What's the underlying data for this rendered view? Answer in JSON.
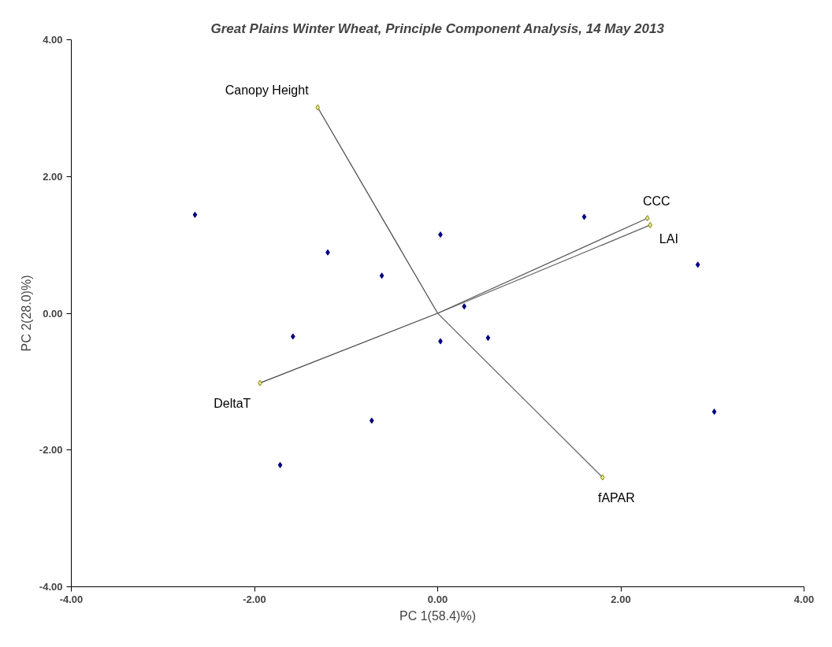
{
  "chart_data": {
    "type": "scatter",
    "title": "Great Plains Winter Wheat, Principle Component Analysis, 14 May 2013",
    "xlabel": "PC 1(58.4)%)",
    "ylabel": "PC 2(28.0)%)",
    "xlim": [
      -4,
      4
    ],
    "ylim": [
      -4,
      4
    ],
    "xticks": [
      {
        "value": -4,
        "label": "-4.00"
      },
      {
        "value": -2,
        "label": "-2.00"
      },
      {
        "value": 0,
        "label": "0.00"
      },
      {
        "value": 2,
        "label": "2.00"
      },
      {
        "value": 4,
        "label": "4.00"
      }
    ],
    "yticks": [
      {
        "value": -4,
        "label": "-4.00"
      },
      {
        "value": -2,
        "label": "-2.00"
      },
      {
        "value": 0,
        "label": "0.00"
      },
      {
        "value": 2,
        "label": "2.00"
      },
      {
        "value": 4,
        "label": "4.00"
      }
    ],
    "grid": false,
    "series": [
      {
        "color": "#000080",
        "marker": "diamond",
        "x": [
          -2.65,
          1.6,
          0.03,
          -1.2,
          -0.61,
          2.84,
          0.29,
          -1.58,
          0.03,
          0.55,
          3.02,
          -0.72,
          -1.72
        ],
        "values": [
          1.44,
          1.41,
          1.15,
          0.89,
          0.55,
          0.71,
          0.1,
          -0.34,
          -0.41,
          -0.36,
          -1.44,
          -1.57,
          -2.22
        ]
      },
      {
        "type": "line",
        "name": "Canopy Height",
        "color": "#505050",
        "marker": "diamond",
        "x": [
          0,
          -1.31
        ],
        "values": [
          0,
          3.01
        ]
      },
      {
        "type": "line",
        "name": "CCC",
        "color": "#5a5a5a",
        "marker": "diamond",
        "x": [
          0,
          2.29
        ],
        "values": [
          0,
          1.39
        ]
      },
      {
        "type": "line",
        "name": "LAI",
        "color": "#646464",
        "marker": "diamond",
        "x": [
          0,
          2.32
        ],
        "values": [
          0,
          1.29
        ]
      },
      {
        "type": "line",
        "name": "DeltaT",
        "color": "#464646",
        "marker": "diamond",
        "x": [
          0,
          -1.94
        ],
        "values": [
          0,
          -1.02
        ]
      },
      {
        "type": "line",
        "name": "fAPAR",
        "color": "#6e6e6e",
        "marker": "diamond",
        "x": [
          0,
          1.8
        ],
        "values": [
          0,
          -2.4
        ]
      }
    ]
  }
}
